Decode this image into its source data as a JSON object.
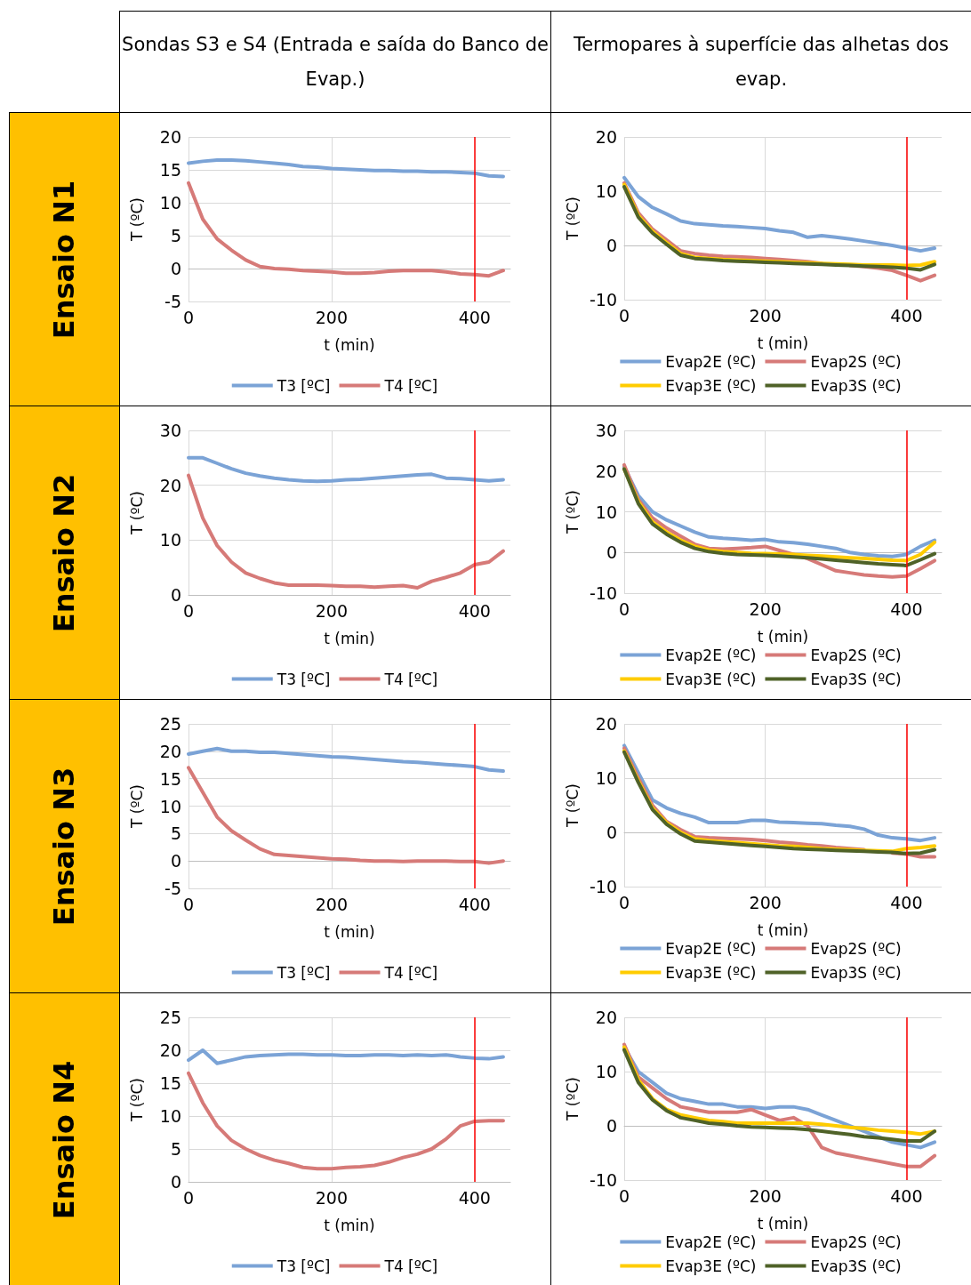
{
  "chart_data": [
    {
      "type": "other",
      "annotations": [
        "Sondas S3 e S4 (Entrada e saída do Banco de Evap.)",
        "Termopares à superfície das alhetas dos evap.",
        "Ensaio N1",
        "Ensaio N2",
        "Ensaio N3",
        "Ensaio N4"
      ]
    },
    {
      "type": "line",
      "xlabel": "t (min)",
      "ylabel": "T (ºC)",
      "x": [
        0,
        20,
        40,
        60,
        80,
        100,
        120,
        140,
        160,
        180,
        200,
        220,
        240,
        260,
        280,
        300,
        320,
        340,
        360,
        380,
        400,
        420,
        440
      ],
      "xlim": [
        0,
        450
      ],
      "xticks": [
        0,
        200,
        400
      ],
      "ylim": [
        -5,
        20
      ],
      "yticks": [
        -5,
        0,
        5,
        10,
        15,
        20
      ],
      "grid": true,
      "legend": "bottom",
      "marker": "none",
      "ref_lines": [
        {
          "axis": "x",
          "value": 400,
          "color": "#ff0000"
        }
      ],
      "series": [
        {
          "name": "T3 [ºC]",
          "color": "#7ba3d6",
          "values": [
            16,
            16.3,
            16.5,
            16.5,
            16.4,
            16.2,
            16,
            15.8,
            15.5,
            15.4,
            15.2,
            15.1,
            15,
            14.9,
            14.9,
            14.8,
            14.8,
            14.7,
            14.7,
            14.6,
            14.5,
            14.1,
            14
          ]
        },
        {
          "name": "T4 [ºC]",
          "color": "#d67a78",
          "values": [
            13,
            7.5,
            4.5,
            2.8,
            1.3,
            0.3,
            0,
            -0.1,
            -0.3,
            -0.4,
            -0.5,
            -0.7,
            -0.7,
            -0.6,
            -0.4,
            -0.3,
            -0.3,
            -0.3,
            -0.5,
            -0.8,
            -0.9,
            -1.1,
            -0.3
          ]
        }
      ]
    },
    {
      "type": "line",
      "xlabel": "t (min)",
      "ylabel": "T (ºC)",
      "x": [
        0,
        20,
        40,
        60,
        80,
        100,
        120,
        140,
        160,
        180,
        200,
        220,
        240,
        260,
        280,
        300,
        320,
        340,
        360,
        380,
        400,
        420,
        440
      ],
      "xlim": [
        0,
        450
      ],
      "xticks": [
        0,
        200,
        400
      ],
      "ylim": [
        -10,
        20
      ],
      "yticks": [
        -10,
        0,
        10,
        20
      ],
      "grid": true,
      "legend": "bottom",
      "marker": "none",
      "ref_lines": [
        {
          "axis": "x",
          "value": 400,
          "color": "#ff0000"
        }
      ],
      "series": [
        {
          "name": "Evap2E (ºC)",
          "color": "#7ba3d6",
          "values": [
            12.5,
            9,
            7,
            5.8,
            4.5,
            4,
            3.8,
            3.6,
            3.5,
            3.3,
            3.1,
            2.7,
            2.4,
            1.5,
            1.8,
            1.5,
            1.2,
            0.8,
            0.4,
            0,
            -0.5,
            -1,
            -0.5
          ]
        },
        {
          "name": "Evap2S (ºC)",
          "color": "#d67a78",
          "values": [
            11.5,
            6,
            3,
            1,
            -1,
            -1.5,
            -1.8,
            -2,
            -2.1,
            -2.2,
            -2.4,
            -2.6,
            -2.8,
            -3,
            -3.3,
            null,
            -3.7,
            -3.9,
            -4.2,
            -4.6,
            -5.5,
            -6.5,
            -5.5
          ]
        },
        {
          "name": "Evap3E (ºC)",
          "color": "#ffcc00",
          "values": [
            11.2,
            5.5,
            2.6,
            0.5,
            -1.5,
            -2.2,
            -2.4,
            -2.6,
            -2.7,
            -2.8,
            -2.9,
            -3,
            -3.1,
            -3.2,
            -3.3,
            -3.4,
            -3.5,
            -3.6,
            -3.6,
            -3.6,
            -3.7,
            -3.6,
            -3
          ]
        },
        {
          "name": "Evap3S (ºC)",
          "color": "#4f6228",
          "values": [
            10.8,
            5.2,
            2.3,
            0.2,
            -1.8,
            -2.4,
            -2.6,
            -2.8,
            -2.9,
            -3,
            -3.1,
            -3.2,
            -3.3,
            -3.4,
            -3.5,
            -3.6,
            -3.7,
            -3.8,
            -3.9,
            -4,
            -4.2,
            -4.5,
            -3.5
          ]
        }
      ]
    },
    {
      "type": "line",
      "xlabel": "t (min)",
      "ylabel": "T (ºC)",
      "x": [
        0,
        20,
        40,
        60,
        80,
        100,
        120,
        140,
        160,
        180,
        200,
        220,
        240,
        260,
        280,
        300,
        320,
        340,
        360,
        380,
        400,
        420,
        440
      ],
      "xlim": [
        0,
        450
      ],
      "xticks": [
        0,
        200,
        400
      ],
      "ylim": [
        0,
        30
      ],
      "yticks": [
        0,
        10,
        20,
        30
      ],
      "grid": true,
      "legend": "bottom",
      "marker": "none",
      "ref_lines": [
        {
          "axis": "x",
          "value": 400,
          "color": "#ff0000"
        }
      ],
      "series": [
        {
          "name": "T3 [ºC]",
          "color": "#7ba3d6",
          "values": [
            25,
            25,
            24,
            23,
            22.2,
            21.7,
            21.3,
            21,
            20.8,
            20.7,
            20.8,
            21,
            21.1,
            21.3,
            21.5,
            21.7,
            21.9,
            22,
            21.3,
            21.2,
            21,
            20.8,
            21
          ]
        },
        {
          "name": "T4 [ºC]",
          "color": "#d67a78",
          "values": [
            21.8,
            14,
            9,
            6,
            4,
            3,
            2.2,
            1.8,
            1.8,
            1.8,
            1.7,
            1.6,
            1.6,
            1.4,
            1.6,
            1.7,
            1.3,
            2.5,
            3.2,
            4,
            5.5,
            6,
            8
          ]
        }
      ]
    },
    {
      "type": "line",
      "xlabel": "t (min)",
      "ylabel": "T (ºC)",
      "x": [
        0,
        20,
        40,
        60,
        80,
        100,
        120,
        140,
        160,
        180,
        200,
        220,
        240,
        260,
        280,
        300,
        320,
        340,
        360,
        380,
        400,
        420,
        440
      ],
      "xlim": [
        0,
        450
      ],
      "xticks": [
        0,
        200,
        400
      ],
      "ylim": [
        -10,
        30
      ],
      "yticks": [
        -10,
        0,
        10,
        20,
        30
      ],
      "grid": true,
      "legend": "bottom",
      "marker": "none",
      "ref_lines": [
        {
          "axis": "x",
          "value": 400,
          "color": "#ff0000"
        }
      ],
      "series": [
        {
          "name": "Evap2E (ºC)",
          "color": "#7ba3d6",
          "values": [
            21,
            14,
            10,
            8,
            6.5,
            5,
            3.8,
            3.5,
            3.3,
            3,
            3.2,
            2.6,
            2.4,
            2,
            1.5,
            1,
            0,
            -0.5,
            -0.8,
            -1,
            -0.5,
            1.5,
            3
          ]
        },
        {
          "name": "Evap2S (ºC)",
          "color": "#d67a78",
          "values": [
            21.5,
            13,
            8.5,
            6,
            4,
            2,
            1,
            0.8,
            1,
            1.2,
            1.5,
            0.5,
            -0.5,
            -1.5,
            -3,
            -4.5,
            -5,
            -5.5,
            -5.8,
            -6,
            -5.8,
            -4,
            -2
          ]
        },
        {
          "name": "Evap3E (ºC)",
          "color": "#ffcc00",
          "values": [
            20.5,
            12.5,
            7.5,
            5,
            3,
            1.5,
            0.6,
            0.2,
            0,
            -0.2,
            -0.3,
            -0.4,
            -0.5,
            -0.7,
            -0.9,
            -1.1,
            -1.3,
            -1.5,
            -1.7,
            -1.9,
            -2,
            -0.5,
            2.5
          ]
        },
        {
          "name": "Evap3S (ºC)",
          "color": "#4f6228",
          "values": [
            20.5,
            12,
            7,
            4.5,
            2.5,
            1,
            0.2,
            -0.2,
            -0.5,
            -0.6,
            -0.7,
            -0.9,
            -1.1,
            -1.3,
            -1.6,
            -1.9,
            -2.2,
            -2.5,
            -2.8,
            -3,
            -3.2,
            -1.8,
            -0.3
          ]
        }
      ]
    },
    {
      "type": "line",
      "xlabel": "t (min)",
      "ylabel": "T (ºC)",
      "x": [
        0,
        20,
        40,
        60,
        80,
        100,
        120,
        140,
        160,
        180,
        200,
        220,
        240,
        260,
        280,
        300,
        320,
        340,
        360,
        380,
        400,
        420,
        440
      ],
      "xlim": [
        0,
        450
      ],
      "xticks": [
        0,
        200,
        400
      ],
      "ylim": [
        -5,
        25
      ],
      "yticks": [
        -5,
        0,
        5,
        10,
        15,
        20,
        25
      ],
      "grid": true,
      "legend": "bottom",
      "marker": "none",
      "ref_lines": [
        {
          "axis": "x",
          "value": 400,
          "color": "#ff0000"
        }
      ],
      "series": [
        {
          "name": "T3 [ºC]",
          "color": "#7ba3d6",
          "values": [
            19.5,
            20,
            20.5,
            20,
            20,
            19.8,
            19.8,
            19.6,
            19.4,
            19.2,
            19,
            18.9,
            18.7,
            18.5,
            18.3,
            18.1,
            18,
            17.8,
            17.6,
            17.4,
            17.2,
            16.6,
            16.4
          ]
        },
        {
          "name": "T4 [ºC]",
          "color": "#d67a78",
          "values": [
            17,
            12.5,
            8,
            5.5,
            3.8,
            2.2,
            1.2,
            1,
            0.8,
            0.6,
            0.4,
            0.3,
            0.1,
            0,
            0,
            -0.1,
            0,
            0,
            0,
            -0.1,
            -0.1,
            -0.4,
            0
          ]
        }
      ]
    },
    {
      "type": "line",
      "xlabel": "t (min)",
      "ylabel": "T (ºC)",
      "x": [
        0,
        20,
        40,
        60,
        80,
        100,
        120,
        140,
        160,
        180,
        200,
        220,
        240,
        260,
        280,
        300,
        320,
        340,
        360,
        380,
        400,
        420,
        440
      ],
      "xlim": [
        0,
        450
      ],
      "xticks": [
        0,
        200,
        400
      ],
      "ylim": [
        -10,
        20
      ],
      "yticks": [
        -10,
        0,
        10,
        20
      ],
      "grid": true,
      "legend": "bottom",
      "marker": "none",
      "ref_lines": [
        {
          "axis": "x",
          "value": 400,
          "color": "#ff0000"
        }
      ],
      "series": [
        {
          "name": "Evap2E (ºC)",
          "color": "#7ba3d6",
          "values": [
            16,
            11,
            6,
            4.5,
            3.5,
            2.8,
            1.8,
            1.8,
            1.8,
            2.2,
            2.2,
            1.9,
            1.8,
            1.7,
            1.6,
            1.3,
            1.1,
            0.6,
            -0.5,
            -1,
            -1.2,
            -1.5,
            -1
          ]
        },
        {
          "name": "Evap2S (ºC)",
          "color": "#d67a78",
          "values": [
            15.5,
            10,
            5,
            2,
            0.5,
            -0.8,
            -1,
            -1.1,
            -1.2,
            -1.3,
            -1.5,
            -1.8,
            -2,
            -2.3,
            -2.5,
            -2.8,
            -3,
            -3.2,
            null,
            -3.8,
            -4,
            -4.5,
            -4.5
          ]
        },
        {
          "name": "Evap3E (ºC)",
          "color": "#ffcc00",
          "values": [
            15,
            9.5,
            4.5,
            1.8,
            0,
            -1.2,
            -1.5,
            -1.7,
            -1.9,
            -2.1,
            -2.3,
            -2.5,
            -2.6,
            -2.8,
            -3,
            -3.1,
            -3.2,
            -3.3,
            -3.4,
            -3.5,
            -3,
            -2.8,
            -2.5
          ]
        },
        {
          "name": "Evap3S (ºC)",
          "color": "#4f6228",
          "values": [
            14.8,
            9.2,
            4.2,
            1.5,
            -0.3,
            -1.6,
            -1.8,
            -2,
            -2.2,
            -2.4,
            -2.6,
            -2.8,
            -3,
            -3.1,
            -3.2,
            -3.3,
            -3.4,
            -3.5,
            -3.6,
            -3.7,
            -3.9,
            -3.8,
            -3.2
          ]
        }
      ]
    },
    {
      "type": "line",
      "xlabel": "t (min)",
      "ylabel": "T (ºC)",
      "x": [
        0,
        20,
        40,
        60,
        80,
        100,
        120,
        140,
        160,
        180,
        200,
        220,
        240,
        260,
        280,
        300,
        320,
        340,
        360,
        380,
        400,
        420,
        440
      ],
      "xlim": [
        0,
        450
      ],
      "xticks": [
        0,
        200,
        400
      ],
      "ylim": [
        0,
        25
      ],
      "yticks": [
        0,
        5,
        10,
        15,
        20,
        25
      ],
      "grid": true,
      "legend": "bottom",
      "marker": "none",
      "ref_lines": [
        {
          "axis": "x",
          "value": 400,
          "color": "#ff0000"
        }
      ],
      "series": [
        {
          "name": "T3 [ºC]",
          "color": "#7ba3d6",
          "values": [
            18.5,
            20,
            18,
            18.5,
            19,
            19.2,
            19.3,
            19.4,
            19.4,
            19.3,
            19.3,
            19.2,
            19.2,
            19.3,
            19.3,
            19.2,
            19.3,
            19.2,
            19.3,
            19,
            18.8,
            18.7,
            19
          ]
        },
        {
          "name": "T4 [ºC]",
          "color": "#d67a78",
          "values": [
            16.5,
            12,
            8.5,
            6.3,
            5,
            4,
            3.3,
            2.8,
            2.2,
            2,
            2,
            2.2,
            2.3,
            2.5,
            3,
            3.7,
            4.2,
            5,
            6.5,
            8.5,
            9.2,
            9.3,
            9.3
          ]
        }
      ]
    },
    {
      "type": "line",
      "xlabel": "t (min)",
      "ylabel": "T (ºC)",
      "x": [
        0,
        20,
        40,
        60,
        80,
        100,
        120,
        140,
        160,
        180,
        200,
        220,
        240,
        260,
        280,
        300,
        320,
        340,
        360,
        380,
        400,
        420,
        440
      ],
      "xlim": [
        0,
        450
      ],
      "xticks": [
        0,
        200,
        400
      ],
      "ylim": [
        -10,
        20
      ],
      "yticks": [
        -10,
        0,
        10,
        20
      ],
      "grid": true,
      "legend": "bottom",
      "marker": "none",
      "ref_lines": [
        {
          "axis": "x",
          "value": 400,
          "color": "#ff0000"
        }
      ],
      "series": [
        {
          "name": "Evap2E (ºC)",
          "color": "#7ba3d6",
          "values": [
            14.5,
            10,
            8,
            6,
            5,
            4.5,
            4,
            4,
            3.5,
            3.5,
            3.2,
            3.5,
            3.5,
            3,
            2,
            1,
            0,
            -1,
            -2,
            -3,
            -3.5,
            -4,
            -3
          ]
        },
        {
          "name": "Evap2S (ºC)",
          "color": "#d67a78",
          "values": [
            15,
            9,
            7,
            5,
            3.5,
            3,
            2.5,
            2.5,
            2.5,
            3,
            2,
            1,
            1.5,
            0,
            -4,
            -5,
            -5.5,
            -6,
            -6.5,
            -7,
            -7.5,
            -7.5,
            -5.5
          ]
        },
        {
          "name": "Evap3E (ºC)",
          "color": "#ffcc00",
          "values": [
            14.5,
            8.5,
            5,
            3,
            2,
            1.5,
            1,
            0.8,
            0.5,
            0.5,
            0.5,
            0.5,
            0.5,
            0.5,
            0.3,
            0,
            -0.3,
            -0.5,
            -0.8,
            -1,
            -1.2,
            -1.5,
            -1
          ]
        },
        {
          "name": "Evap3S (ºC)",
          "color": "#4f6228",
          "values": [
            14,
            8,
            4.8,
            2.8,
            1.5,
            1,
            0.5,
            0.3,
            0,
            -0.2,
            -0.3,
            -0.4,
            -0.5,
            -0.7,
            -1,
            -1.3,
            -1.6,
            -2,
            -2.2,
            -2.5,
            -2.8,
            -2.8,
            -1
          ]
        }
      ]
    }
  ]
}
